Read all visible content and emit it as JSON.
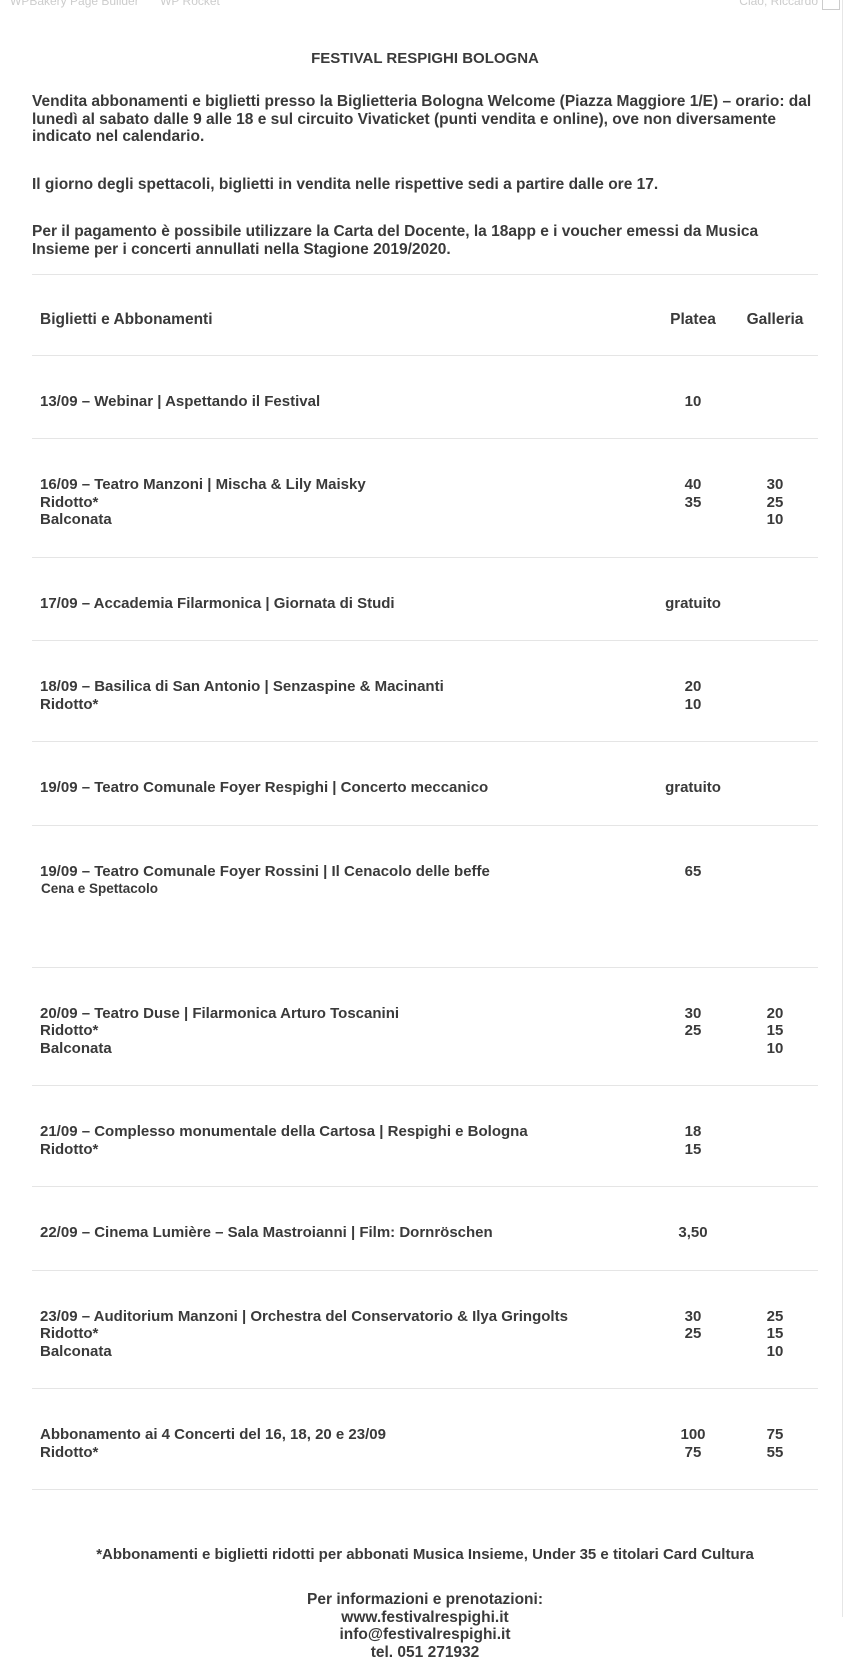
{
  "admin_bar": {
    "left": [
      "WPBakery Page Builder",
      "WP Rocket"
    ],
    "right": "Ciao, Riccardo"
  },
  "header": {
    "title": "FESTIVAL RESPIGHI BOLOGNA"
  },
  "intro": [
    "Vendita abbonamenti e biglietti presso la Biglietteria Bologna Welcome (Piazza Maggiore 1/E) – orario: dal lunedì al sabato dalle 9 alle 18 e sul circuito Vivaticket (punti vendita e online), ove non diversamente indicato nel calendario.",
    "Il giorno degli spettacoli, biglietti in vendita nelle rispettive sedi a partire dalle ore 17.",
    "Per il pagamento è possibile utilizzare la Carta del Docente, la 18app e i voucher emessi da Musica Insieme per i concerti annullati nella Stagione 2019/2020."
  ],
  "table": {
    "header": {
      "label": "Biglietti e Abbonamenti",
      "platea": "Platea",
      "galleria": "Galleria"
    },
    "rows": [
      {
        "lines": [
          {
            "label": "13/09 – Webinar | Aspettando il Festival",
            "platea": "10"
          }
        ]
      },
      {
        "lines": [
          {
            "label": "16/09 – Teatro Manzoni | Mischa & Lily Maisky",
            "platea": "40",
            "galleria": "30"
          },
          {
            "label": "Ridotto*",
            "platea": "35",
            "galleria": "25"
          },
          {
            "label": "Balconata",
            "galleria": "10"
          }
        ]
      },
      {
        "lines": [
          {
            "label": "17/09 – Accademia Filarmonica | Giornata di Studi",
            "platea": "gratuito"
          }
        ]
      },
      {
        "lines": [
          {
            "label": "18/09 – Basilica di San Antonio | Senzaspine & Macinanti",
            "platea": "20"
          },
          {
            "label": "Ridotto*",
            "platea": "10"
          }
        ]
      },
      {
        "lines": [
          {
            "label": "19/09 – Teatro Comunale Foyer Respighi | Concerto meccanico",
            "platea": "gratuito"
          }
        ]
      },
      {
        "lines": [
          {
            "label": "19/09 – Teatro Comunale Foyer Rossini | Il Cenacolo delle beffe",
            "platea": "65"
          },
          {
            "sublabel": "Cena e Spettacolo"
          }
        ]
      },
      {
        "lines": [
          {
            "label": "20/09 – Teatro Duse | Filarmonica Arturo Toscanini",
            "platea": "30",
            "galleria": "20"
          },
          {
            "label": "Ridotto*",
            "platea": "25",
            "galleria": "15"
          },
          {
            "label": "Balconata",
            "galleria": "10"
          }
        ]
      },
      {
        "lines": [
          {
            "label": "21/09 – Complesso monumentale della Cartosa | Respighi e Bologna",
            "platea": "18"
          },
          {
            "label": "Ridotto*",
            "platea": "15"
          }
        ]
      },
      {
        "lines": [
          {
            "label": "22/09 – Cinema Lumière – Sala Mastroianni | Film: Dornröschen",
            "platea": "3,50"
          }
        ]
      },
      {
        "lines": [
          {
            "label": "23/09 – Auditorium Manzoni | Orchestra del Conservatorio & Ilya Gringolts",
            "platea": "30",
            "galleria": "25"
          },
          {
            "label": "Ridotto*",
            "platea": "25",
            "galleria": "15"
          },
          {
            "label": "Balconata",
            "galleria": "10"
          }
        ]
      },
      {
        "lines": [
          {
            "label": "Abbonamento ai 4 Concerti del 16, 18, 20 e 23/09",
            "platea": "100",
            "galleria": "75"
          },
          {
            "label": "Ridotto*",
            "platea": "75",
            "galleria": "55"
          }
        ]
      }
    ]
  },
  "footnote": "*Abbonamenti e biglietti ridotti per abbonati Musica Insieme, Under 35 e titolari Card Cultura",
  "contact": [
    "Per informazioni e prenotazioni:",
    "www.festivalrespighi.it",
    "info@festivalrespighi.it",
    "tel. 051 271932"
  ]
}
